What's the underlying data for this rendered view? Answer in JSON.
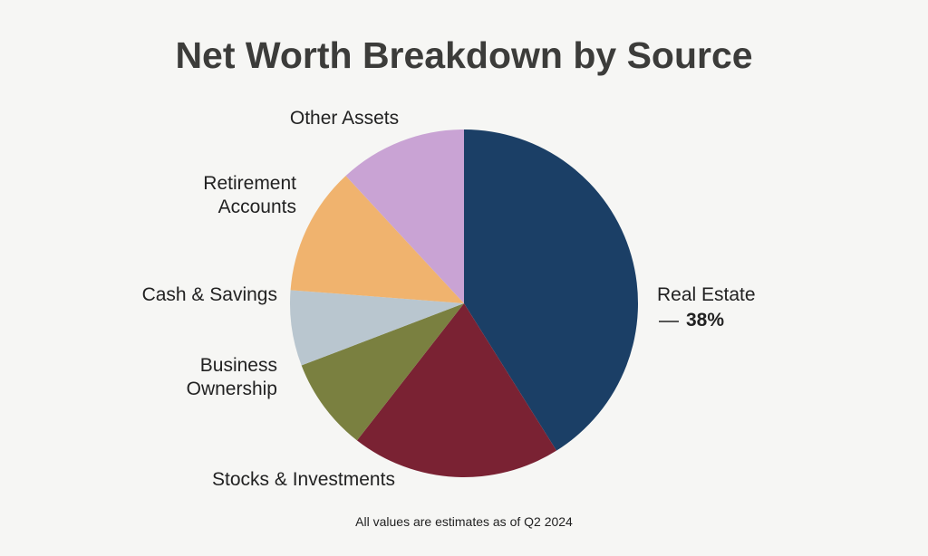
{
  "chart_data": {
    "type": "pie",
    "title": "Net Worth Breakdown by Source",
    "categories": [
      "Real Estate",
      "Stocks & Investments",
      "Business Ownership",
      "Cash & Savings",
      "Retirement Accounts",
      "Other Assets"
    ],
    "values": [
      38,
      18,
      8,
      6.5,
      11,
      11
    ],
    "value_labels": [
      "38%",
      null,
      null,
      null,
      null,
      null
    ],
    "colors": [
      "#1b3f66",
      "#7a2233",
      "#7a8040",
      "#b9c6cf",
      "#f0b36e",
      "#c9a3d4"
    ],
    "note": "All values are estimates as of Q2 2024"
  }
}
